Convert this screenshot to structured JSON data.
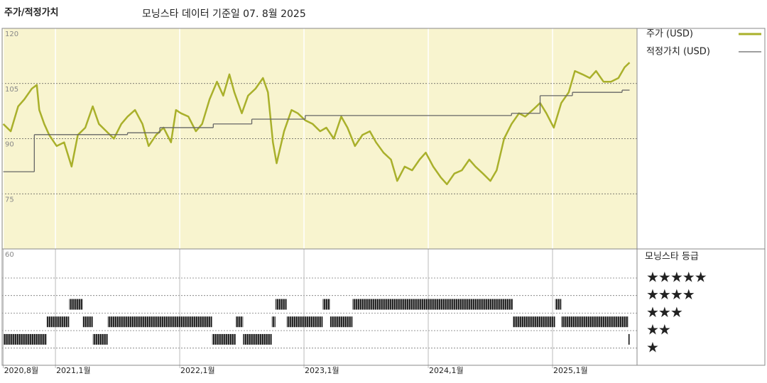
{
  "chart_data": {
    "type": "line",
    "title": "주가/적정가치",
    "subtitle": "모닝스타 데이터 기준일 07. 8월 2025",
    "xlim": [
      2020.571,
      2025.68
    ],
    "xticks": [
      {
        "value": 2020.58,
        "label": "2020,8월"
      },
      {
        "value": 2021.0,
        "label": "2021,1월"
      },
      {
        "value": 2022.0,
        "label": "2022,1월"
      },
      {
        "value": 2023.0,
        "label": "2023,1월"
      },
      {
        "value": 2024.0,
        "label": "2024,1월"
      },
      {
        "value": 2025.0,
        "label": "2025,1월"
      }
    ],
    "ylim": [
      60,
      120
    ],
    "yticks": [
      120,
      105,
      90,
      75,
      60
    ],
    "grid": true,
    "x": [
      2020.58,
      2020.64,
      2020.7,
      2020.75,
      2020.81,
      2020.85,
      2020.87,
      2020.91,
      2020.95,
      2021.01,
      2021.07,
      2021.13,
      2021.18,
      2021.24,
      2021.3,
      2021.35,
      2021.41,
      2021.47,
      2021.53,
      2021.58,
      2021.64,
      2021.7,
      2021.75,
      2021.81,
      2021.87,
      2021.93,
      2021.97,
      2022.01,
      2022.07,
      2022.13,
      2022.18,
      2022.24,
      2022.3,
      2022.35,
      2022.4,
      2022.44,
      2022.5,
      2022.55,
      2022.61,
      2022.67,
      2022.71,
      2022.75,
      2022.78,
      2022.84,
      2022.9,
      2022.95,
      2023.01,
      2023.07,
      2023.13,
      2023.18,
      2023.24,
      2023.3,
      2023.35,
      2023.41,
      2023.47,
      2023.53,
      2023.58,
      2023.64,
      2023.7,
      2023.75,
      2023.81,
      2023.87,
      2023.93,
      2023.98,
      2024.04,
      2024.1,
      2024.15,
      2024.21,
      2024.27,
      2024.33,
      2024.38,
      2024.44,
      2024.5,
      2024.55,
      2024.61,
      2024.67,
      2024.73,
      2024.78,
      2024.84,
      2024.9,
      2024.95,
      2025.01,
      2025.07,
      2025.13,
      2025.18,
      2025.24,
      2025.3,
      2025.35,
      2025.41,
      2025.47,
      2025.53,
      2025.58,
      2025.62
    ],
    "series": [
      {
        "name": "주가 (USD)",
        "color": "#a9b02b",
        "values": [
          94,
          92,
          98.8,
          100.7,
          103.6,
          104.6,
          97.8,
          94,
          91,
          88,
          89,
          82.4,
          91,
          93,
          98.8,
          94,
          92,
          90,
          94,
          96,
          97.8,
          94,
          88,
          91,
          93,
          89,
          97.8,
          96.9,
          96,
          92,
          94,
          100.7,
          105.5,
          101.7,
          107.5,
          102.6,
          96.9,
          101.7,
          103.6,
          106.5,
          102.6,
          89,
          83.3,
          92,
          97.8,
          96.9,
          95,
          94,
          92,
          93,
          90,
          96,
          93,
          88,
          91,
          92,
          89,
          86.2,
          84.3,
          78.5,
          82.4,
          81.4,
          84.3,
          86.2,
          82.4,
          79.5,
          77.6,
          80.5,
          81.4,
          84.3,
          82.4,
          80.5,
          78.5,
          81.4,
          90,
          94,
          96.9,
          96,
          97.8,
          99.7,
          96.9,
          93,
          99.7,
          102.6,
          108.4,
          107.5,
          106.5,
          108.4,
          105.5,
          105.5,
          106.5,
          109.4,
          110.7
        ]
      },
      {
        "name": "적정가치 (USD)",
        "color": "#666666",
        "step": true,
        "x": [
          2020.58,
          2020.83,
          2021.58,
          2021.84,
          2022.27,
          2022.58,
          2023.01,
          2024.67,
          2024.9,
          2025.16,
          2025.56,
          2025.62
        ],
        "values": [
          81,
          91.1,
          91.6,
          93,
          94,
          95.3,
          96.3,
          96.9,
          101.7,
          102.6,
          103.2,
          103.2
        ]
      }
    ],
    "rating_title": "모닝스타 등급",
    "rating_labels": [
      "★★★★★",
      "★★★★",
      "★★★",
      "★★",
      "★"
    ],
    "ratings": {
      "start": [
        2020.58,
        2020.93,
        2021.11,
        2021.22,
        2021.3,
        2021.42,
        2022.26,
        2022.45,
        2022.51,
        2022.74,
        2022.77,
        2022.86,
        2023.15,
        2023.21,
        2023.39,
        2024.68,
        2025.02,
        2025.07,
        2025.61
      ],
      "end": [
        2020.93,
        2021.11,
        2021.22,
        2021.3,
        2021.42,
        2022.26,
        2022.45,
        2022.51,
        2022.74,
        2022.77,
        2022.86,
        2023.15,
        2023.21,
        2023.39,
        2024.68,
        2025.02,
        2025.07,
        2025.61,
        2025.62
      ],
      "stars": [
        2,
        3,
        4,
        3,
        2,
        3,
        2,
        3,
        2,
        3,
        4,
        3,
        4,
        3,
        4,
        3,
        4,
        3,
        2
      ]
    }
  }
}
